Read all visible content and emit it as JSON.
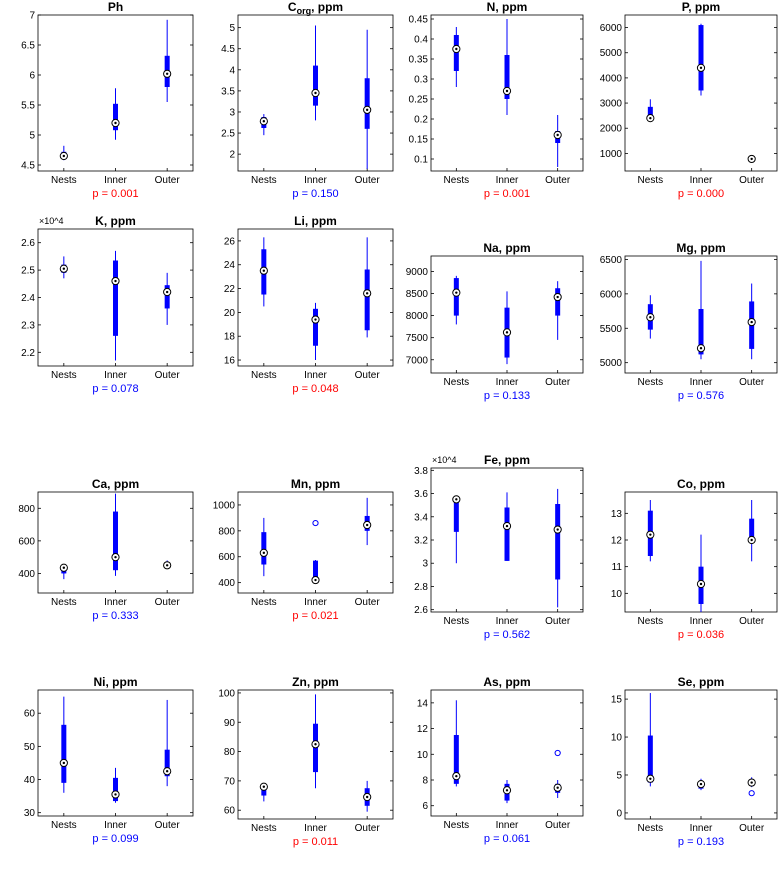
{
  "colors": {
    "box": "#0000ff",
    "sig": "#ff0000",
    "nonsig": "#0000ff",
    "axis": "#000000"
  },
  "chart_data": [
    {
      "type": "box",
      "title": "Ph",
      "categories": [
        "Nests",
        "Inner",
        "Outer"
      ],
      "ylim": [
        4.4,
        7.0
      ],
      "yticks": [
        4.5,
        5,
        5.5,
        6,
        6.5,
        7
      ],
      "ytick_labels": [
        "4.5",
        "5",
        "5.5",
        "6",
        "6.5",
        "7"
      ],
      "boxes": [
        {
          "wlo": 4.58,
          "q1": 4.6,
          "q3": 4.72,
          "whi": 4.82,
          "median": 4.65,
          "outliers": []
        },
        {
          "wlo": 4.92,
          "q1": 5.08,
          "q3": 5.52,
          "whi": 5.78,
          "median": 5.2,
          "outliers": []
        },
        {
          "wlo": 5.55,
          "q1": 5.8,
          "q3": 6.32,
          "whi": 6.92,
          "median": 6.02,
          "outliers": []
        }
      ],
      "p_label": "p = 0.001",
      "significant": true
    },
    {
      "type": "box",
      "title": "C",
      "title_sub": "org",
      "title_suffix": ", ppm",
      "categories": [
        "Nests",
        "Inner",
        "Outer"
      ],
      "ylim": [
        1.6,
        5.3
      ],
      "yticks": [
        2,
        2.5,
        3,
        3.5,
        4,
        4.5,
        5
      ],
      "ytick_labels": [
        "2",
        "2.5",
        "3",
        "3.5",
        "4",
        "4.5",
        "5"
      ],
      "boxes": [
        {
          "wlo": 2.45,
          "q1": 2.62,
          "q3": 2.88,
          "whi": 2.95,
          "median": 2.78,
          "outliers": []
        },
        {
          "wlo": 2.8,
          "q1": 3.15,
          "q3": 4.1,
          "whi": 5.05,
          "median": 3.45,
          "outliers": []
        },
        {
          "wlo": 1.65,
          "q1": 2.6,
          "q3": 3.8,
          "whi": 4.95,
          "median": 3.05,
          "outliers": []
        }
      ],
      "p_label": "p = 0.150",
      "significant": false
    },
    {
      "type": "box",
      "title": "N, ppm",
      "categories": [
        "Nests",
        "Inner",
        "Outer"
      ],
      "ylim": [
        0.07,
        0.46
      ],
      "yticks": [
        0.1,
        0.15,
        0.2,
        0.25,
        0.3,
        0.35,
        0.4,
        0.45
      ],
      "ytick_labels": [
        "0.1",
        "0.15",
        "0.2",
        "0.25",
        "0.3",
        "0.35",
        "0.4",
        "0.45"
      ],
      "boxes": [
        {
          "wlo": 0.28,
          "q1": 0.32,
          "q3": 0.41,
          "whi": 0.43,
          "median": 0.375,
          "outliers": []
        },
        {
          "wlo": 0.21,
          "q1": 0.25,
          "q3": 0.36,
          "whi": 0.45,
          "median": 0.27,
          "outliers": []
        },
        {
          "wlo": 0.08,
          "q1": 0.14,
          "q3": 0.17,
          "whi": 0.21,
          "median": 0.16,
          "outliers": []
        }
      ],
      "p_label": "p = 0.001",
      "significant": true
    },
    {
      "type": "box",
      "title": "P, ppm",
      "categories": [
        "Nests",
        "Inner",
        "Outer"
      ],
      "ylim": [
        300,
        6500
      ],
      "yticks": [
        1000,
        2000,
        3000,
        4000,
        5000,
        6000
      ],
      "ytick_labels": [
        "1000",
        "2000",
        "3000",
        "4000",
        "5000",
        "6000"
      ],
      "boxes": [
        {
          "wlo": 2300,
          "q1": 2400,
          "q3": 2850,
          "whi": 3150,
          "median": 2400,
          "outliers": []
        },
        {
          "wlo": 3300,
          "q1": 3500,
          "q3": 6100,
          "whi": 6150,
          "median": 4400,
          "outliers": []
        },
        {
          "wlo": 680,
          "q1": 730,
          "q3": 800,
          "whi": 830,
          "median": 780,
          "outliers": []
        }
      ],
      "p_label": "p = 0.000",
      "significant": true
    },
    {
      "type": "box",
      "title": "K, ppm",
      "multiplier": "×10^4",
      "categories": [
        "Nests",
        "Inner",
        "Outer"
      ],
      "ylim": [
        2.15,
        2.65
      ],
      "yticks": [
        2.2,
        2.3,
        2.4,
        2.5,
        2.6
      ],
      "ytick_labels": [
        "2.2",
        "2.3",
        "2.4",
        "2.5",
        "2.6"
      ],
      "boxes": [
        {
          "wlo": 2.47,
          "q1": 2.49,
          "q3": 2.52,
          "whi": 2.55,
          "median": 2.505,
          "outliers": []
        },
        {
          "wlo": 2.17,
          "q1": 2.26,
          "q3": 2.535,
          "whi": 2.57,
          "median": 2.46,
          "outliers": []
        },
        {
          "wlo": 2.3,
          "q1": 2.36,
          "q3": 2.445,
          "whi": 2.49,
          "median": 2.42,
          "outliers": []
        }
      ],
      "p_label": "p = 0.078",
      "significant": false
    },
    {
      "type": "box",
      "title": "Li, ppm",
      "categories": [
        "Nests",
        "Inner",
        "Outer"
      ],
      "ylim": [
        15.5,
        27.0
      ],
      "yticks": [
        16,
        18,
        20,
        22,
        24,
        26
      ],
      "ytick_labels": [
        "16",
        "18",
        "20",
        "22",
        "24",
        "26"
      ],
      "boxes": [
        {
          "wlo": 20.5,
          "q1": 21.5,
          "q3": 25.3,
          "whi": 26.3,
          "median": 23.5,
          "outliers": []
        },
        {
          "wlo": 16.0,
          "q1": 17.2,
          "q3": 20.3,
          "whi": 20.8,
          "median": 19.4,
          "outliers": []
        },
        {
          "wlo": 17.9,
          "q1": 18.5,
          "q3": 23.6,
          "whi": 26.3,
          "median": 21.6,
          "outliers": []
        }
      ],
      "p_label": "p = 0.048",
      "significant": true
    },
    {
      "type": "box",
      "title": "Na, ppm",
      "categories": [
        "Nests",
        "Inner",
        "Outer"
      ],
      "ylim": [
        6700,
        9350
      ],
      "yticks": [
        7000,
        7500,
        8000,
        8500,
        9000
      ],
      "ytick_labels": [
        "7000",
        "7500",
        "8000",
        "8500",
        "9000"
      ],
      "boxes": [
        {
          "wlo": 7800,
          "q1": 8000,
          "q3": 8850,
          "whi": 8900,
          "median": 8520,
          "outliers": []
        },
        {
          "wlo": 6900,
          "q1": 7050,
          "q3": 8180,
          "whi": 8550,
          "median": 7620,
          "outliers": []
        },
        {
          "wlo": 7450,
          "q1": 8000,
          "q3": 8620,
          "whi": 8780,
          "median": 8420,
          "outliers": []
        }
      ],
      "p_label": "p = 0.133",
      "significant": false
    },
    {
      "type": "box",
      "title": "Mg, ppm",
      "categories": [
        "Nests",
        "Inner",
        "Outer"
      ],
      "ylim": [
        4850,
        6550
      ],
      "yticks": [
        5000,
        5500,
        6000,
        6500
      ],
      "ytick_labels": [
        "5000",
        "5500",
        "6000",
        "6500"
      ],
      "boxes": [
        {
          "wlo": 5350,
          "q1": 5480,
          "q3": 5850,
          "whi": 5980,
          "median": 5660,
          "outliers": []
        },
        {
          "wlo": 5050,
          "q1": 5120,
          "q3": 5780,
          "whi": 6480,
          "median": 5210,
          "outliers": []
        },
        {
          "wlo": 5050,
          "q1": 5200,
          "q3": 5890,
          "whi": 6150,
          "median": 5590,
          "outliers": []
        }
      ],
      "p_label": "p = 0.576",
      "significant": false
    },
    {
      "type": "box",
      "title": "Ca, ppm",
      "categories": [
        "Nests",
        "Inner",
        "Outer"
      ],
      "ylim": [
        280,
        900
      ],
      "yticks": [
        400,
        600,
        800
      ],
      "ytick_labels": [
        "400",
        "600",
        "800"
      ],
      "boxes": [
        {
          "wlo": 365,
          "q1": 400,
          "q3": 440,
          "whi": 455,
          "median": 435,
          "outliers": []
        },
        {
          "wlo": 385,
          "q1": 420,
          "q3": 780,
          "whi": 890,
          "median": 500,
          "outliers": []
        },
        {
          "wlo": 430,
          "q1": 440,
          "q3": 460,
          "whi": 480,
          "median": 450,
          "outliers": []
        }
      ],
      "p_label": "p = 0.333",
      "significant": false
    },
    {
      "type": "box",
      "title": "Mn, ppm",
      "categories": [
        "Nests",
        "Inner",
        "Outer"
      ],
      "ylim": [
        320,
        1100
      ],
      "yticks": [
        400,
        600,
        800,
        1000
      ],
      "ytick_labels": [
        "400",
        "600",
        "800",
        "1000"
      ],
      "boxes": [
        {
          "wlo": 450,
          "q1": 540,
          "q3": 790,
          "whi": 900,
          "median": 630,
          "outliers": []
        },
        {
          "wlo": 395,
          "q1": 405,
          "q3": 570,
          "whi": 575,
          "median": 420,
          "outliers": [
            860
          ]
        },
        {
          "wlo": 690,
          "q1": 800,
          "q3": 915,
          "whi": 1055,
          "median": 845,
          "outliers": []
        }
      ],
      "p_label": "p = 0.021",
      "significant": true
    },
    {
      "type": "box",
      "title": "Fe, ppm",
      "multiplier": "×10^4",
      "categories": [
        "Nests",
        "Inner",
        "Outer"
      ],
      "ylim": [
        2.58,
        3.82
      ],
      "yticks": [
        2.6,
        2.8,
        3,
        3.2,
        3.4,
        3.6,
        3.8
      ],
      "ytick_labels": [
        "2.6",
        "2.8",
        "3",
        "3.2",
        "3.4",
        "3.6",
        "3.8"
      ],
      "boxes": [
        {
          "wlo": 3.0,
          "q1": 3.27,
          "q3": 3.56,
          "whi": 3.57,
          "median": 3.55,
          "outliers": []
        },
        {
          "wlo": 3.02,
          "q1": 3.02,
          "q3": 3.48,
          "whi": 3.61,
          "median": 3.32,
          "outliers": []
        },
        {
          "wlo": 2.62,
          "q1": 2.86,
          "q3": 3.51,
          "whi": 3.64,
          "median": 3.29,
          "outliers": []
        }
      ],
      "p_label": "p = 0.562",
      "significant": false
    },
    {
      "type": "box",
      "title": "Co, ppm",
      "categories": [
        "Nests",
        "Inner",
        "Outer"
      ],
      "ylim": [
        9.3,
        13.8
      ],
      "yticks": [
        10,
        11,
        12,
        13
      ],
      "ytick_labels": [
        "10",
        "11",
        "12",
        "13"
      ],
      "boxes": [
        {
          "wlo": 11.2,
          "q1": 11.4,
          "q3": 13.1,
          "whi": 13.5,
          "median": 12.2,
          "outliers": []
        },
        {
          "wlo": 9.3,
          "q1": 9.6,
          "q3": 11.0,
          "whi": 12.2,
          "median": 10.35,
          "outliers": []
        },
        {
          "wlo": 11.2,
          "q1": 11.9,
          "q3": 12.8,
          "whi": 13.5,
          "median": 12.0,
          "outliers": []
        }
      ],
      "p_label": "p = 0.036",
      "significant": true
    },
    {
      "type": "box",
      "title": "Ni, ppm",
      "categories": [
        "Nests",
        "Inner",
        "Outer"
      ],
      "ylim": [
        29,
        67
      ],
      "yticks": [
        30,
        40,
        50,
        60
      ],
      "ytick_labels": [
        "30",
        "40",
        "50",
        "60"
      ],
      "boxes": [
        {
          "wlo": 36,
          "q1": 39,
          "q3": 56.5,
          "whi": 65,
          "median": 45,
          "outliers": []
        },
        {
          "wlo": 33,
          "q1": 33.5,
          "q3": 40.5,
          "whi": 43.5,
          "median": 35.5,
          "outliers": []
        },
        {
          "wlo": 38,
          "q1": 41,
          "q3": 49,
          "whi": 64,
          "median": 42.5,
          "outliers": []
        }
      ],
      "p_label": "p = 0.099",
      "significant": false
    },
    {
      "type": "box",
      "title": "Zn, ppm",
      "categories": [
        "Nests",
        "Inner",
        "Outer"
      ],
      "ylim": [
        57,
        101
      ],
      "yticks": [
        60,
        70,
        80,
        90,
        100
      ],
      "ytick_labels": [
        "60",
        "70",
        "80",
        "90",
        "100"
      ],
      "boxes": [
        {
          "wlo": 63,
          "q1": 65,
          "q3": 68.5,
          "whi": 69,
          "median": 68,
          "outliers": []
        },
        {
          "wlo": 67.5,
          "q1": 73,
          "q3": 89.5,
          "whi": 99.5,
          "median": 82.5,
          "outliers": []
        },
        {
          "wlo": 59.5,
          "q1": 61.5,
          "q3": 67.5,
          "whi": 70,
          "median": 64.5,
          "outliers": []
        }
      ],
      "p_label": "p = 0.011",
      "significant": true
    },
    {
      "type": "box",
      "title": "As, ppm",
      "categories": [
        "Nests",
        "Inner",
        "Outer"
      ],
      "ylim": [
        5.2,
        15.0
      ],
      "yticks": [
        6,
        8,
        10,
        12,
        14
      ],
      "ytick_labels": [
        "6",
        "8",
        "10",
        "12",
        "14"
      ],
      "boxes": [
        {
          "wlo": 7.5,
          "q1": 7.7,
          "q3": 11.5,
          "whi": 14.2,
          "median": 8.3,
          "outliers": []
        },
        {
          "wlo": 6.2,
          "q1": 6.4,
          "q3": 7.7,
          "whi": 8.0,
          "median": 7.2,
          "outliers": []
        },
        {
          "wlo": 6.6,
          "q1": 7.0,
          "q3": 7.7,
          "whi": 8.0,
          "median": 7.4,
          "outliers": [
            10.1
          ]
        }
      ],
      "p_label": "p = 0.061",
      "significant": false
    },
    {
      "type": "box",
      "title": "Se, ppm",
      "categories": [
        "Nests",
        "Inner",
        "Outer"
      ],
      "ylim": [
        -0.8,
        16.2
      ],
      "yticks": [
        0,
        5,
        10,
        15
      ],
      "ytick_labels": [
        "0",
        "5",
        "10",
        "15"
      ],
      "boxes": [
        {
          "wlo": 3.5,
          "q1": 4.0,
          "q3": 10.2,
          "whi": 15.8,
          "median": 4.5,
          "outliers": []
        },
        {
          "wlo": 3.0,
          "q1": 3.2,
          "q3": 4.2,
          "whi": 4.5,
          "median": 3.8,
          "outliers": []
        },
        {
          "wlo": 3.4,
          "q1": 3.6,
          "q3": 4.4,
          "whi": 4.7,
          "median": 4.0,
          "outliers": [
            2.6
          ]
        }
      ],
      "p_label": "p = 0.193",
      "significant": false
    }
  ]
}
